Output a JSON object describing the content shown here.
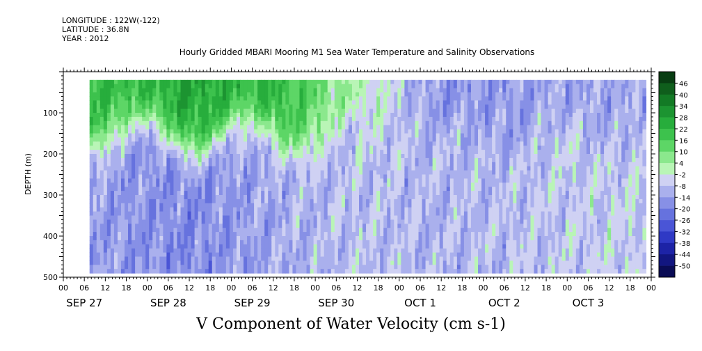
{
  "header": {
    "longitude": "LONGITUDE : 122W(-122)",
    "latitude": "LATITUDE : 36.8N",
    "year": "YEAR : 2012"
  },
  "chart_data": {
    "type": "heatmap",
    "title": "Hourly Gridded MBARI Mooring M1 Sea Water Temperature and Salinity Observations",
    "variable_label": "V Component of Water Velocity (cm s-1)",
    "ylabel": "DEPTH (m)",
    "ylim": [
      500,
      0
    ],
    "y_reversed": true,
    "y_ticks": [
      100,
      200,
      300,
      400,
      500
    ],
    "x_range_hours": [
      0,
      168
    ],
    "x_hour_labels": [
      "00",
      "06",
      "12",
      "18",
      "00",
      "06",
      "12",
      "18",
      "00",
      "06",
      "12",
      "18",
      "00",
      "06",
      "12",
      "18",
      "00",
      "06",
      "12",
      "18",
      "00",
      "06",
      "12",
      "18",
      "00",
      "06",
      "12",
      "18",
      "00"
    ],
    "x_day_labels": [
      "SEP 27",
      "SEP 28",
      "SEP 29",
      "SEP 30",
      "OCT  1",
      "OCT  2",
      "OCT  3"
    ],
    "data_time_range_hours": [
      7.5,
      166.5
    ],
    "data_depth_range_m": [
      20,
      490
    ],
    "colorbar": {
      "levels": [
        46,
        40,
        34,
        28,
        22,
        16,
        10,
        4,
        -2,
        -8,
        -14,
        -20,
        -26,
        -32,
        -38,
        -44,
        -50
      ],
      "colors": [
        "#083d12",
        "#0f5e1c",
        "#137a25",
        "#1c9431",
        "#27ad3c",
        "#3dc24d",
        "#5dd666",
        "#8be88d",
        "#b9f5b6",
        "#cfd1f3",
        "#aab0ed",
        "#8790e6",
        "#6672de",
        "#4a55d6",
        "#2f39c5",
        "#1d23a6",
        "#121680",
        "#0a0c55"
      ]
    },
    "v_profile_by_day": [
      {
        "day": "SEP 27",
        "upper_50_200m": 20,
        "lower_200_490m": -14
      },
      {
        "day": "SEP 28",
        "upper_50_200m": 26,
        "lower_200_490m": -18
      },
      {
        "day": "SEP 29",
        "upper_50_200m": 22,
        "lower_200_490m": -12
      },
      {
        "day": "SEP 30",
        "upper_50_200m": 2,
        "lower_200_490m": -8
      },
      {
        "day": "OCT  1",
        "upper_50_200m": -16,
        "lower_200_490m": -10
      },
      {
        "day": "OCT  2",
        "upper_50_200m": -14,
        "lower_200_490m": -8
      },
      {
        "day": "OCT  3",
        "upper_50_200m": -12,
        "lower_200_490m": -6
      }
    ]
  }
}
